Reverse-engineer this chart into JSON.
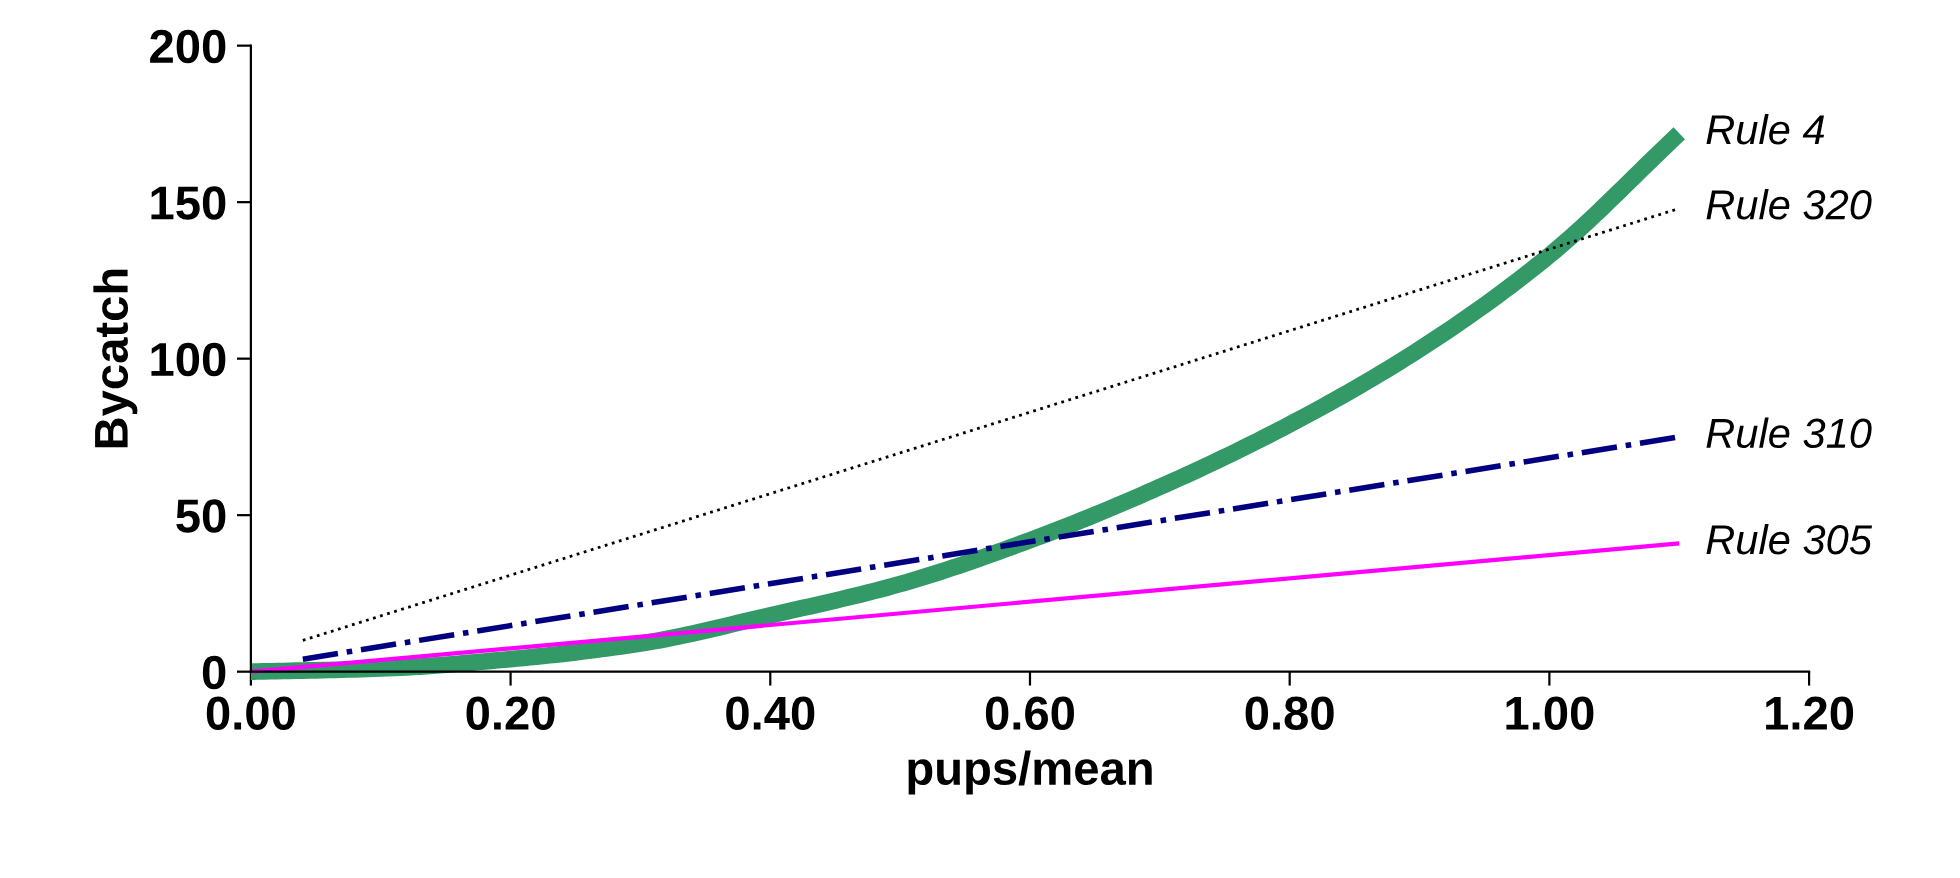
{
  "chart_data": {
    "type": "line",
    "xlabel": "pups/mean",
    "ylabel": "Bycatch",
    "series": [
      {
        "name": "Rule 4",
        "color": "#339966",
        "line_style": "solid",
        "x": [
          0,
          0.1,
          0.2,
          0.3,
          0.4,
          0.5,
          0.6,
          0.7,
          0.8,
          0.9,
          1.0,
          1.1
        ],
        "values": [
          0,
          1,
          4,
          9,
          18,
          28,
          42,
          59,
          79,
          103,
          133,
          172
        ]
      },
      {
        "name": "Rule 320",
        "color": "#000000",
        "line_style": "dotted",
        "x": [
          0.04,
          1.1
        ],
        "values": [
          10,
          148
        ]
      },
      {
        "name": "Rule 310",
        "color": "#000080",
        "line_style": "dashed",
        "x": [
          0.04,
          1.1
        ],
        "values": [
          4,
          75
        ]
      },
      {
        "name": "Rule 305",
        "color": "#ff00ff",
        "line_style": "solid",
        "x": [
          0,
          1.1
        ],
        "values": [
          0,
          41
        ]
      }
    ],
    "xlim": [
      0,
      1.2
    ],
    "ylim": [
      0,
      200
    ],
    "xticks": [
      {
        "value": 0,
        "label": "0.00"
      },
      {
        "value": 0.2,
        "label": "0.20"
      },
      {
        "value": 0.4,
        "label": "0.40"
      },
      {
        "value": 0.6,
        "label": "0.60"
      },
      {
        "value": 0.8,
        "label": "0.80"
      },
      {
        "value": 1.0,
        "label": "1.00"
      },
      {
        "value": 1.2,
        "label": "1.20"
      }
    ],
    "yticks": [
      0,
      50,
      100,
      150,
      200
    ],
    "grid": false,
    "legend": false
  }
}
